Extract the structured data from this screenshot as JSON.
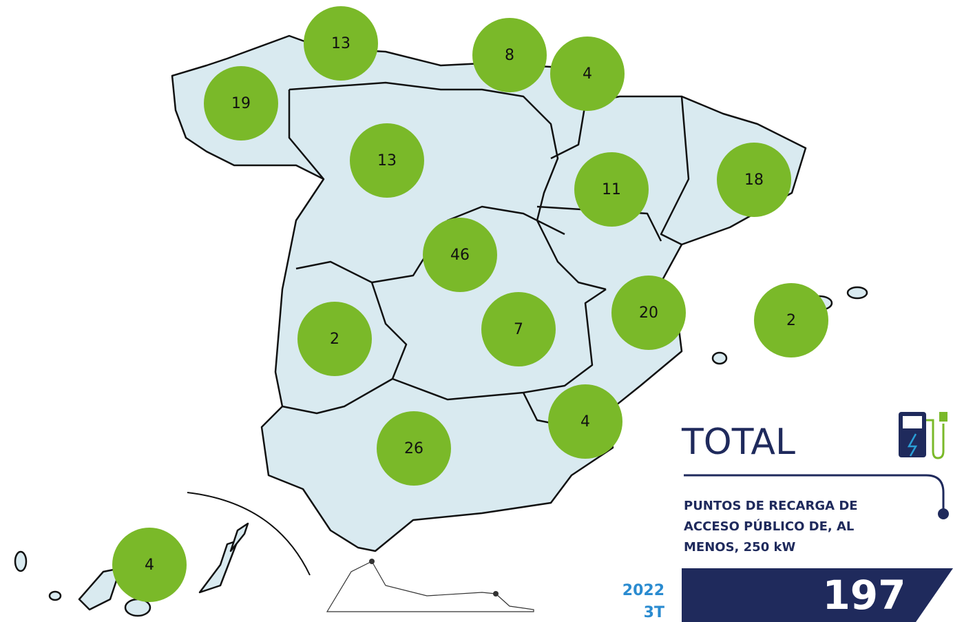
{
  "regions": {
    "values": [
      13,
      8,
      4,
      19,
      13,
      11,
      18,
      46,
      20,
      2,
      2,
      7,
      4,
      26,
      4
    ]
  },
  "total": {
    "title": "TOTAL",
    "subtitle": "PUNTOS DE RECARGA DE ACCESO PÚBLICO DE, AL MENOS, 250 kW",
    "value": 197,
    "year": "2022",
    "quarter": "3T"
  }
}
